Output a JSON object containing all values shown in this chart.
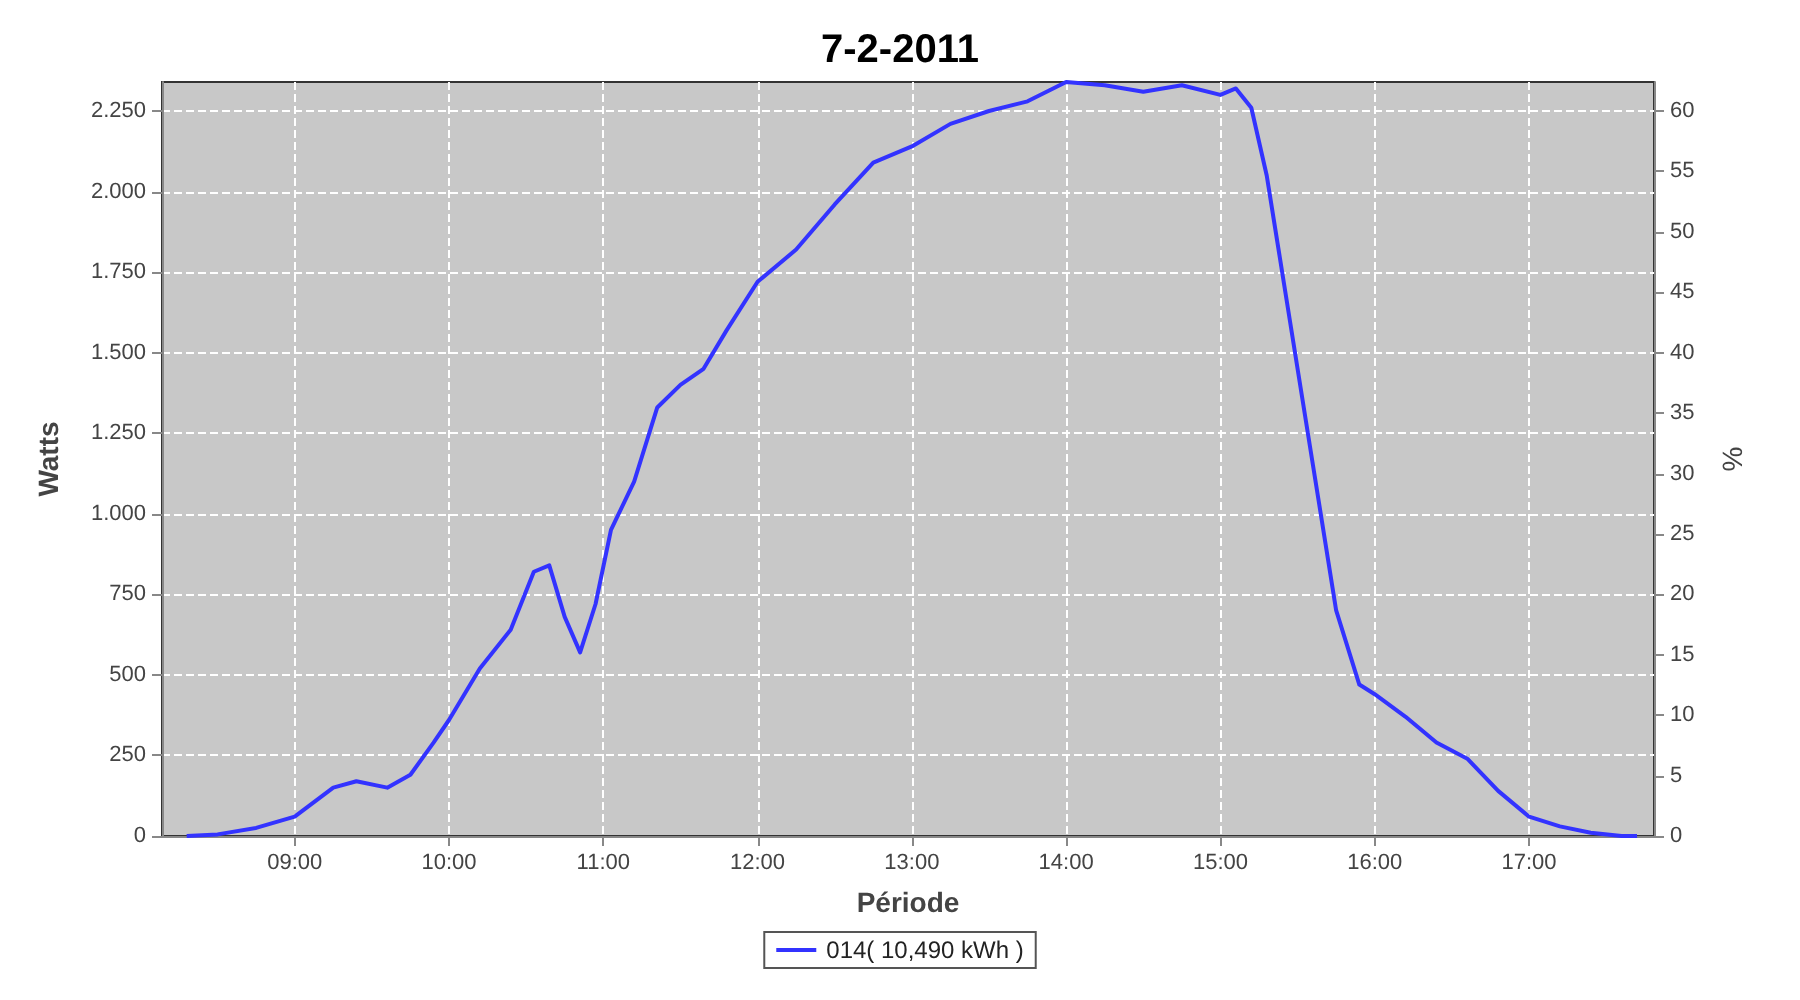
{
  "chart_data": {
    "type": "line",
    "title": "7-2-2011",
    "xlabel": "Période",
    "ylabel": "Watts",
    "y2label": "%",
    "xlim": [
      8.14,
      17.81
    ],
    "xticks": [
      {
        "value": 9,
        "label": "09:00"
      },
      {
        "value": 10,
        "label": "10:00"
      },
      {
        "value": 11,
        "label": "11:00"
      },
      {
        "value": 12,
        "label": "12:00"
      },
      {
        "value": 13,
        "label": "13:00"
      },
      {
        "value": 14,
        "label": "14:00"
      },
      {
        "value": 15,
        "label": "15:00"
      },
      {
        "value": 16,
        "label": "16:00"
      },
      {
        "value": 17,
        "label": "17:00"
      }
    ],
    "ylim": [
      0,
      2340
    ],
    "yticks": [
      0,
      250,
      500,
      750,
      {
        "value": 1000,
        "label": "1.000"
      },
      {
        "value": 1250,
        "label": "1.250"
      },
      {
        "value": 1500,
        "label": "1.500"
      },
      {
        "value": 1750,
        "label": "1.750"
      },
      {
        "value": 2000,
        "label": "2.000"
      },
      {
        "value": 2250,
        "label": "2.250"
      }
    ],
    "y2lim": [
      0,
      62.4
    ],
    "y2ticks": [
      0,
      5,
      10,
      15,
      20,
      25,
      30,
      35,
      40,
      45,
      50,
      55,
      60
    ],
    "grid": true,
    "legend": "bottom",
    "marker": "none",
    "line_style": "solid",
    "series": [
      {
        "name": "014( 10,490 kWh )",
        "color": "#3333ff",
        "x": [
          8.3,
          8.5,
          8.75,
          9.0,
          9.25,
          9.4,
          9.6,
          9.75,
          9.9,
          10.0,
          10.2,
          10.4,
          10.55,
          10.65,
          10.75,
          10.85,
          10.95,
          11.05,
          11.2,
          11.35,
          11.5,
          11.65,
          11.8,
          12.0,
          12.25,
          12.5,
          12.75,
          13.0,
          13.25,
          13.5,
          13.75,
          14.0,
          14.25,
          14.5,
          14.75,
          15.0,
          15.1,
          15.2,
          15.3,
          15.45,
          15.6,
          15.75,
          15.9,
          16.0,
          16.2,
          16.4,
          16.6,
          16.8,
          17.0,
          17.2,
          17.4,
          17.6,
          17.7
        ],
        "values": [
          0,
          5,
          25,
          60,
          150,
          170,
          150,
          190,
          290,
          360,
          520,
          640,
          820,
          840,
          680,
          570,
          720,
          950,
          1100,
          1330,
          1400,
          1450,
          1570,
          1720,
          1820,
          1960,
          2090,
          2140,
          2210,
          2250,
          2280,
          2340,
          2330,
          2310,
          2330,
          2300,
          2320,
          2260,
          2050,
          1600,
          1150,
          700,
          470,
          440,
          370,
          290,
          240,
          140,
          60,
          30,
          10,
          0,
          0
        ]
      }
    ]
  }
}
